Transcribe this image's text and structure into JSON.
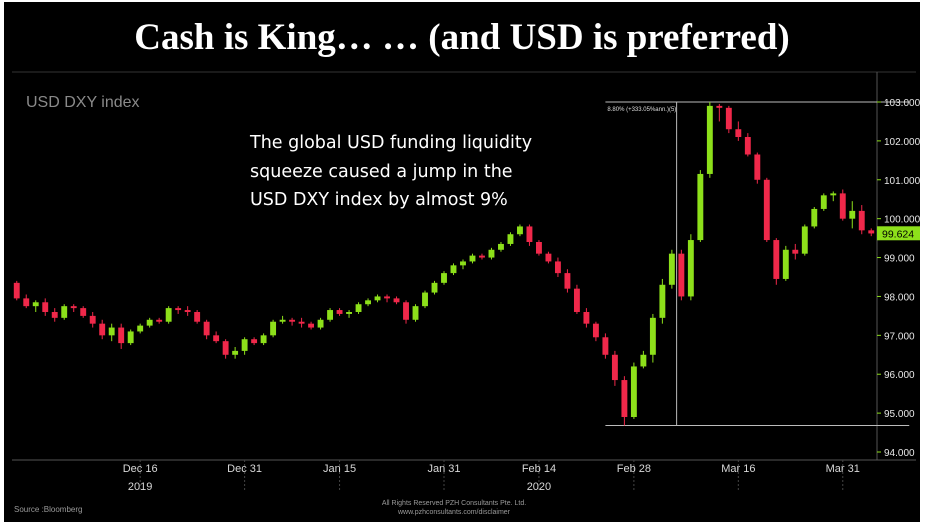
{
  "slide": {
    "title": "Cash is King… … (and USD is preferred)",
    "source": "Source :Bloomberg",
    "rights_line1": "All Rights Reserved PZH Consultants Pte. Ltd.",
    "rights_line2": "www.pzhconsultants.com/disclaimer"
  },
  "colors": {
    "background": "#000000",
    "up": "#8de01a",
    "down": "#f0284a",
    "annotation": "#ffffff",
    "chart_label": "#8a8a8a",
    "price_tag_bg": "#8de01a",
    "price_tag_text": "#000000"
  },
  "chart_data": {
    "type": "candlestick",
    "title": "USD DXY index",
    "annotation": [
      "The global USD funding liquidity",
      "squeeze caused a jump in the",
      "USD DXY index by almost 9%"
    ],
    "ylim": [
      93.9,
      103.25
    ],
    "y_ticks": [
      "94.000",
      "95.000",
      "96.000",
      "97.000",
      "98.000",
      "99.000",
      "100.000",
      "101.000",
      "102.000",
      "103.000"
    ],
    "last_price": "99.624",
    "x_ticks": [
      {
        "label": "Dec 16",
        "year": "2019",
        "index": 13
      },
      {
        "label": "Dec 31",
        "year": "",
        "index": 24
      },
      {
        "label": "Jan 15",
        "year": "",
        "index": 34
      },
      {
        "label": "Jan 31",
        "year": "",
        "index": 45
      },
      {
        "label": "Feb 14",
        "year": "2020",
        "index": 55
      },
      {
        "label": "Feb 28",
        "year": "",
        "index": 65
      },
      {
        "label": "Mar 16",
        "year": "",
        "index": 76
      },
      {
        "label": "Mar 31",
        "year": "",
        "index": 87
      }
    ],
    "measure": {
      "label": "8.80% (+333.05%ann.)(5)",
      "low": 94.68,
      "high": 103.0
    },
    "ohlc": [
      [
        98.35,
        98.4,
        97.9,
        97.95
      ],
      [
        97.95,
        98.05,
        97.7,
        97.75
      ],
      [
        97.75,
        97.9,
        97.6,
        97.85
      ],
      [
        97.85,
        97.95,
        97.5,
        97.6
      ],
      [
        97.6,
        97.7,
        97.35,
        97.45
      ],
      [
        97.45,
        97.8,
        97.4,
        97.75
      ],
      [
        97.75,
        97.8,
        97.6,
        97.7
      ],
      [
        97.7,
        97.75,
        97.45,
        97.5
      ],
      [
        97.5,
        97.6,
        97.2,
        97.3
      ],
      [
        97.3,
        97.4,
        96.9,
        97.0
      ],
      [
        97.0,
        97.3,
        96.85,
        97.2
      ],
      [
        97.2,
        97.3,
        96.65,
        96.8
      ],
      [
        96.8,
        97.15,
        96.75,
        97.1
      ],
      [
        97.1,
        97.3,
        97.05,
        97.25
      ],
      [
        97.25,
        97.45,
        97.2,
        97.4
      ],
      [
        97.4,
        97.45,
        97.3,
        97.35
      ],
      [
        97.35,
        97.75,
        97.3,
        97.7
      ],
      [
        97.7,
        97.75,
        97.55,
        97.65
      ],
      [
        97.65,
        97.75,
        97.5,
        97.6
      ],
      [
        97.6,
        97.65,
        97.3,
        97.35
      ],
      [
        97.35,
        97.4,
        96.9,
        97.0
      ],
      [
        97.0,
        97.1,
        96.8,
        96.85
      ],
      [
        96.85,
        96.9,
        96.4,
        96.5
      ],
      [
        96.5,
        96.7,
        96.4,
        96.6
      ],
      [
        96.6,
        96.95,
        96.5,
        96.9
      ],
      [
        96.9,
        96.95,
        96.75,
        96.8
      ],
      [
        96.8,
        97.05,
        96.75,
        97.0
      ],
      [
        97.0,
        97.4,
        96.95,
        97.35
      ],
      [
        97.35,
        97.5,
        97.3,
        97.4
      ],
      [
        97.4,
        97.45,
        97.25,
        97.35
      ],
      [
        97.35,
        97.45,
        97.2,
        97.3
      ],
      [
        97.3,
        97.35,
        97.15,
        97.2
      ],
      [
        97.2,
        97.45,
        97.15,
        97.4
      ],
      [
        97.4,
        97.7,
        97.35,
        97.65
      ],
      [
        97.65,
        97.7,
        97.5,
        97.55
      ],
      [
        97.55,
        97.65,
        97.45,
        97.6
      ],
      [
        97.6,
        97.85,
        97.55,
        97.8
      ],
      [
        97.8,
        97.95,
        97.75,
        97.9
      ],
      [
        97.9,
        98.05,
        97.85,
        98.0
      ],
      [
        98.0,
        98.05,
        97.85,
        97.95
      ],
      [
        97.95,
        98.0,
        97.8,
        97.85
      ],
      [
        97.85,
        97.9,
        97.3,
        97.4
      ],
      [
        97.4,
        97.8,
        97.35,
        97.75
      ],
      [
        97.75,
        98.15,
        97.7,
        98.1
      ],
      [
        98.1,
        98.4,
        98.05,
        98.35
      ],
      [
        98.35,
        98.65,
        98.3,
        98.6
      ],
      [
        98.6,
        98.85,
        98.55,
        98.8
      ],
      [
        98.8,
        98.95,
        98.7,
        98.9
      ],
      [
        98.9,
        99.1,
        98.85,
        99.05
      ],
      [
        99.05,
        99.1,
        98.95,
        99.0
      ],
      [
        99.0,
        99.25,
        98.95,
        99.2
      ],
      [
        99.2,
        99.4,
        99.15,
        99.35
      ],
      [
        99.35,
        99.65,
        99.3,
        99.6
      ],
      [
        99.6,
        99.85,
        99.55,
        99.8
      ],
      [
        99.8,
        99.85,
        99.3,
        99.4
      ],
      [
        99.4,
        99.45,
        99.05,
        99.1
      ],
      [
        99.1,
        99.15,
        98.85,
        98.9
      ],
      [
        98.9,
        99.0,
        98.5,
        98.6
      ],
      [
        98.6,
        98.7,
        98.1,
        98.2
      ],
      [
        98.2,
        98.3,
        97.55,
        97.6
      ],
      [
        97.6,
        97.7,
        97.2,
        97.3
      ],
      [
        97.3,
        97.35,
        96.85,
        96.95
      ],
      [
        96.95,
        97.05,
        96.4,
        96.5
      ],
      [
        96.5,
        96.6,
        95.7,
        95.85
      ],
      [
        95.85,
        95.95,
        94.68,
        94.9
      ],
      [
        94.9,
        96.3,
        94.85,
        96.2
      ],
      [
        96.2,
        96.6,
        96.15,
        96.5
      ],
      [
        96.5,
        97.55,
        96.3,
        97.45
      ],
      [
        97.45,
        98.45,
        97.3,
        98.3
      ],
      [
        98.3,
        99.2,
        98.2,
        99.1
      ],
      [
        99.1,
        99.2,
        97.9,
        98.0
      ],
      [
        98.0,
        99.6,
        97.9,
        99.45
      ],
      [
        99.45,
        101.25,
        99.4,
        101.15
      ],
      [
        101.15,
        103.0,
        101.05,
        102.9
      ],
      [
        102.9,
        102.95,
        102.5,
        102.85
      ],
      [
        102.85,
        102.9,
        102.2,
        102.3
      ],
      [
        102.3,
        102.5,
        102.0,
        102.1
      ],
      [
        102.1,
        102.2,
        101.6,
        101.65
      ],
      [
        101.65,
        101.7,
        100.9,
        101.0
      ],
      [
        101.0,
        101.05,
        99.4,
        99.45
      ],
      [
        99.45,
        99.5,
        98.3,
        98.45
      ],
      [
        98.45,
        99.3,
        98.4,
        99.2
      ],
      [
        99.2,
        99.35,
        98.95,
        99.1
      ],
      [
        99.1,
        99.85,
        99.05,
        99.8
      ],
      [
        99.8,
        100.3,
        99.75,
        100.25
      ],
      [
        100.25,
        100.65,
        100.2,
        100.6
      ],
      [
        100.6,
        100.7,
        100.45,
        100.65
      ],
      [
        100.65,
        100.75,
        99.95,
        100.0
      ],
      [
        100.0,
        100.45,
        99.75,
        100.2
      ],
      [
        100.2,
        100.35,
        99.6,
        99.7
      ],
      [
        99.7,
        99.75,
        99.55,
        99.62
      ]
    ]
  }
}
